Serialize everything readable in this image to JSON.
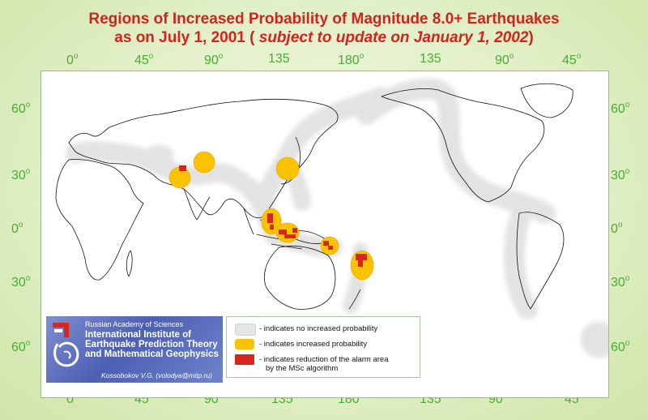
{
  "title": {
    "line1": "Regions of Increased Probability of Magnitude 8.0+ Earthquakes",
    "line2_prefix": "as on July 1, 2001 (",
    "line2_italic": " subject to update on January 1, 2002",
    "line2_suffix": ")"
  },
  "longitude_labels": [
    "0",
    "45",
    "90",
    "135",
    "180",
    "135",
    "90",
    "45"
  ],
  "latitude_labels": [
    "60",
    "30",
    "0",
    "30",
    "60"
  ],
  "degree_mark": "o",
  "colors": {
    "no_increase": "#e5e5e5",
    "increased": "#fbc200",
    "reduction": "#d8261c",
    "tick_label": "#4caa36",
    "title": "#d0241c"
  },
  "institute": {
    "academy": "Russian Academy of Sciences",
    "name_lines": [
      "International Institute of",
      "Earthquake Prediction Theory",
      "and Mathematical Geophysics"
    ],
    "author": "Kossobokov V.G. (volodya@mitp.ru)"
  },
  "legend": [
    {
      "swatch": "gray",
      "text": "- indicates no increased probability"
    },
    {
      "swatch": "yellow",
      "text": "- indicates increased probability"
    },
    {
      "swatch": "red",
      "text": "- indicates reduction of the alarm area",
      "text2": "by the MSc algorithm"
    }
  ]
}
